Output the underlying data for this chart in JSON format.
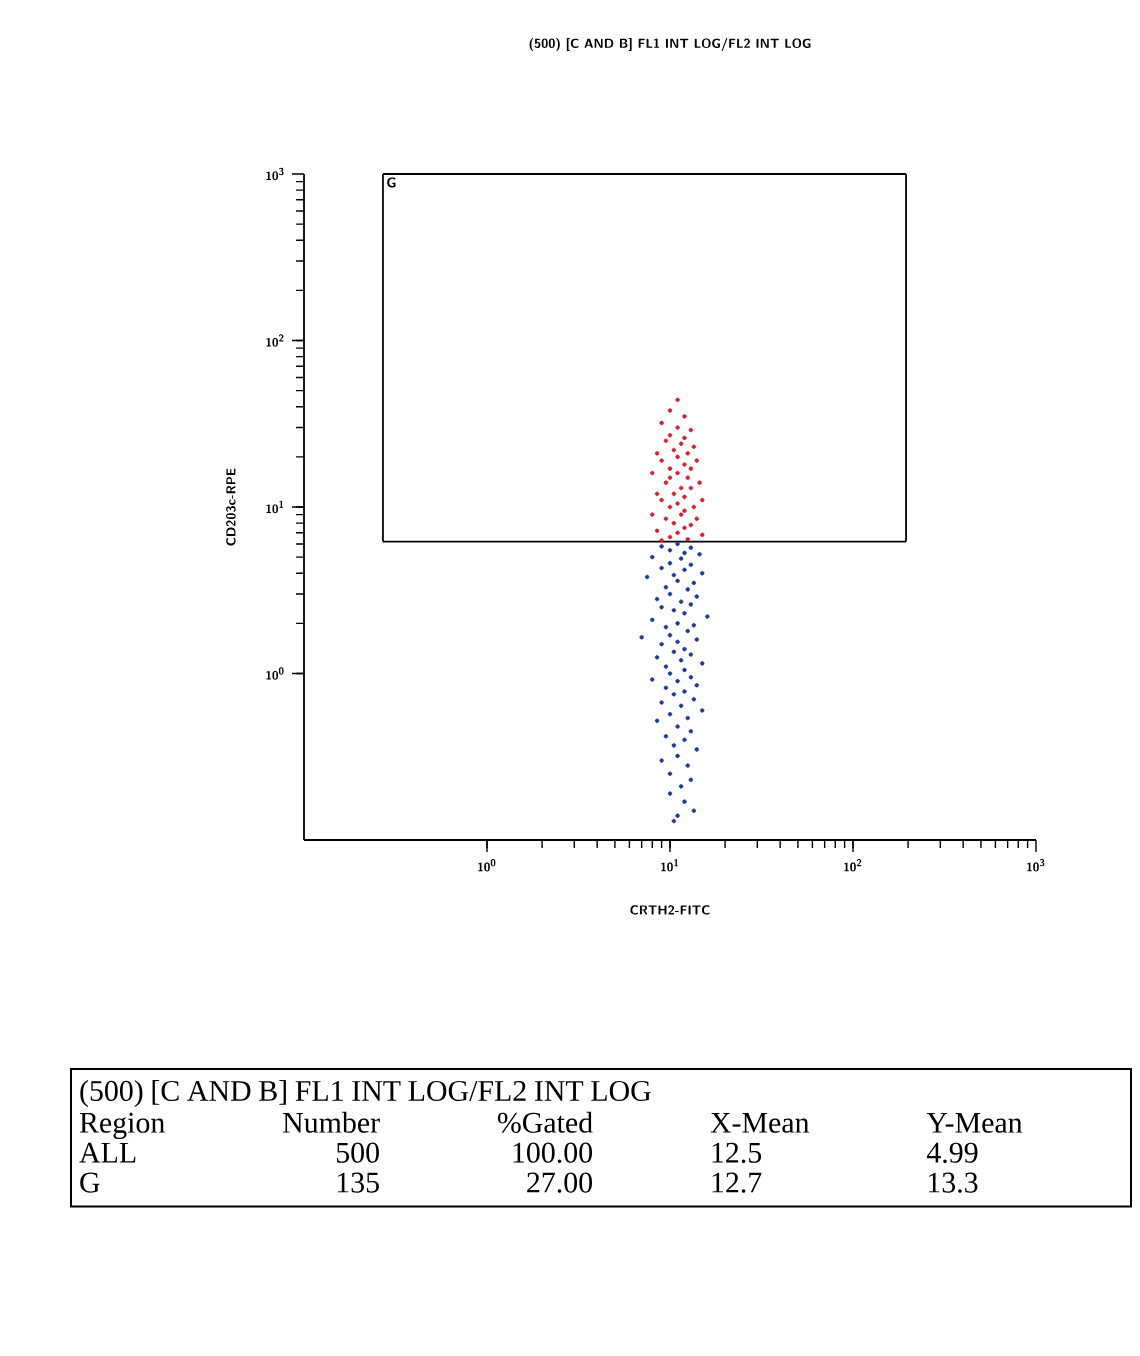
{
  "chart_data": {
    "type": "scatter",
    "title": "(500) [C AND B] FL1 INT LOG/FL2 INT LOG",
    "xlabel": "CRTH2-FITC",
    "ylabel": "CD203c-RPE",
    "log": "xy",
    "grid": false,
    "xlim": [
      0.1,
      1000
    ],
    "ylim": [
      0.1,
      1000
    ],
    "xticks": [
      {
        "value": 1,
        "label": "10$^{0}$"
      },
      {
        "value": 10,
        "label": "10$^{1}$"
      },
      {
        "value": 100,
        "label": "10$^{2}$"
      },
      {
        "value": 1000,
        "label": "10$^{3}$"
      }
    ],
    "yticks": [
      {
        "value": 1,
        "label": "10$^{0}$"
      },
      {
        "value": 10,
        "label": "10$^{1}$"
      },
      {
        "value": 100,
        "label": "10$^{2}$"
      },
      {
        "value": 1000,
        "label": "10$^{3}$"
      }
    ],
    "series": [
      {
        "type": "line",
        "marker": "none",
        "color": "#000000",
        "x": [
          0.27,
          195
        ],
        "values": [
          6.2,
          6.2
        ]
      },
      {
        "type": "line",
        "marker": "none",
        "color": "#000000",
        "x": [
          0.27,
          195
        ],
        "values": [
          1000,
          1000
        ]
      },
      {
        "type": "line",
        "marker": "none",
        "color": "#000000",
        "x": [
          0.27,
          0.27
        ],
        "values": [
          6.2,
          1000
        ]
      },
      {
        "type": "line",
        "marker": "none",
        "color": "#000000",
        "x": [
          195,
          195
        ],
        "values": [
          6.2,
          1000
        ]
      },
      {
        "marker": "circle",
        "color": "#d42030",
        "x": [
          11,
          10,
          12,
          9,
          11,
          13,
          10,
          12,
          9.5,
          11.5,
          13.5,
          10.5,
          12.5,
          8.5,
          11,
          14,
          9,
          12,
          10,
          13,
          11,
          8,
          12.5,
          10,
          14.5,
          9.5,
          11.5,
          13,
          10.5,
          8.5,
          12,
          15,
          9,
          11,
          13.5,
          10,
          12,
          8,
          11.5,
          14,
          9.5,
          10.5,
          13,
          12,
          8.5,
          11,
          15,
          10,
          12.5,
          9
        ],
        "values": [
          44,
          38,
          35,
          32,
          30,
          29,
          27,
          26,
          25,
          24,
          23,
          22,
          21,
          21,
          20,
          19,
          19,
          18,
          17,
          17,
          16,
          16,
          15,
          15,
          14,
          14,
          13,
          13,
          12,
          12,
          11.5,
          11,
          11,
          10.5,
          10,
          10,
          9.5,
          9,
          9,
          8.5,
          8.5,
          8,
          7.8,
          7.5,
          7.2,
          7,
          6.8,
          6.6,
          6.4,
          6.3
        ]
      },
      {
        "marker": "circle",
        "color": "#1f3a93",
        "x": [
          11,
          9,
          13,
          10,
          12,
          14.5,
          8,
          11.5,
          10,
          13,
          9,
          12,
          15,
          10.5,
          7.5,
          11,
          13.5,
          9.5,
          12.5,
          10,
          14,
          8.5,
          11.5,
          13,
          9,
          10.5,
          12,
          16,
          8,
          11,
          13.5,
          9.5,
          12.5,
          10,
          7,
          14,
          11,
          9,
          12,
          10.5,
          13,
          8.5,
          11.5,
          15,
          9.5,
          12,
          10,
          13,
          8,
          11,
          14,
          9.5,
          12,
          10.5,
          13.5,
          9,
          11.5,
          15,
          10,
          12.5,
          8.5,
          11,
          13,
          9.5,
          12,
          10.5,
          14,
          11,
          9,
          12.5,
          10,
          13,
          11.5,
          10,
          12,
          13.5,
          11,
          10.5
        ],
        "values": [
          6.0,
          5.8,
          5.7,
          5.5,
          5.3,
          5.2,
          5.0,
          4.9,
          4.6,
          4.5,
          4.3,
          4.2,
          4.0,
          3.9,
          3.8,
          3.6,
          3.5,
          3.3,
          3.2,
          3.0,
          2.9,
          2.8,
          2.7,
          2.6,
          2.5,
          2.4,
          2.3,
          2.2,
          2.1,
          2.0,
          1.95,
          1.9,
          1.8,
          1.7,
          1.65,
          1.6,
          1.55,
          1.5,
          1.4,
          1.35,
          1.3,
          1.25,
          1.2,
          1.15,
          1.1,
          1.05,
          1.0,
          0.95,
          0.92,
          0.9,
          0.85,
          0.82,
          0.78,
          0.75,
          0.7,
          0.67,
          0.64,
          0.6,
          0.57,
          0.54,
          0.52,
          0.48,
          0.45,
          0.42,
          0.4,
          0.37,
          0.35,
          0.32,
          0.3,
          0.28,
          0.25,
          0.23,
          0.21,
          0.19,
          0.17,
          0.15,
          0.14,
          0.13
        ]
      }
    ],
    "annotations": [
      "(500) [C AND B] FL1 INT LOG/FL2 INT LOG",
      "Region",
      "Number",
      "%Gated",
      "X-Mean",
      "Y-Mean",
      "ALL",
      "500",
      "100.00",
      "12.5",
      "4.99",
      "G",
      "135",
      "27.00",
      "12.7",
      "13.3",
      {
        "text": "G",
        "x": 0.27,
        "y": 1000
      }
    ]
  }
}
